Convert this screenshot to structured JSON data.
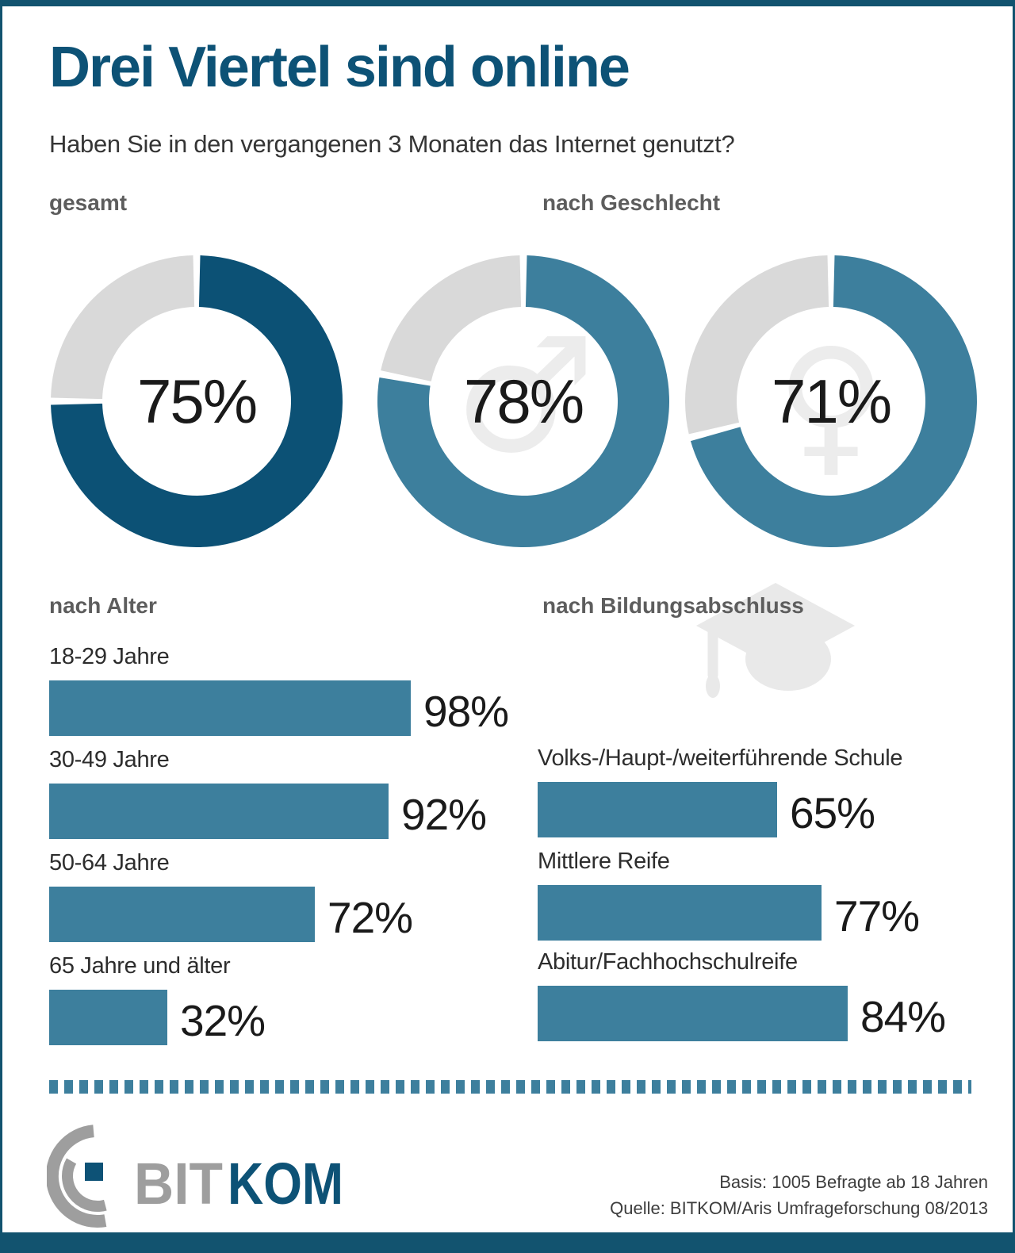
{
  "header": {
    "title": "Drei Viertel sind online",
    "question": "Haben Sie in den vergangenen 3 Monaten das Internet genutzt?"
  },
  "sections": {
    "total": "gesamt",
    "gender": "nach Geschlecht",
    "age": "nach Alter",
    "education": "nach Bildungsabschluss"
  },
  "colors": {
    "brand_dark_blue": "#0d5276",
    "teal": "#3d7f9d",
    "ring_rest_gray": "#d9d9d9",
    "watermark_gray": "#ececec",
    "section_label_gray": "#5d5d5d",
    "logo_gray": "#9e9e9e"
  },
  "chart_data": [
    {
      "type": "donut",
      "section": "gesamt",
      "items": [
        {
          "value": 75,
          "display": "75%",
          "color": "#0c5175",
          "rest_color": "#d9d9d9",
          "watermark_symbol": ""
        }
      ]
    },
    {
      "type": "donut",
      "section": "nach Geschlecht",
      "items": [
        {
          "value": 78,
          "display": "78%",
          "color": "#3d7f9d",
          "rest_color": "#d9d9d9",
          "watermark_symbol": "♂"
        },
        {
          "value": 71,
          "display": "71%",
          "color": "#3d7f9d",
          "rest_color": "#d9d9d9",
          "watermark_symbol": "♀"
        }
      ]
    },
    {
      "type": "bar",
      "section": "nach Alter",
      "color": "#3d7f9d",
      "axis_max": 100,
      "items": [
        {
          "label": "18-29 Jahre",
          "value": 98,
          "display": "98%"
        },
        {
          "label": "30-49 Jahre",
          "value": 92,
          "display": "92%"
        },
        {
          "label": "50-64 Jahre",
          "value": 72,
          "display": "72%"
        },
        {
          "label": "65 Jahre und älter",
          "value": 32,
          "display": "32%"
        }
      ]
    },
    {
      "type": "bar",
      "section": "nach Bildungsabschluss",
      "color": "#3d7f9d",
      "axis_max": 100,
      "items": [
        {
          "label": "Volks-/Haupt-/weiterführende Schule",
          "value": 65,
          "display": "65%"
        },
        {
          "label": "Mittlere Reife",
          "value": 77,
          "display": "77%"
        },
        {
          "label": "Abitur/Fachhochschulreife",
          "value": 84,
          "display": "84%"
        }
      ]
    }
  ],
  "logo": {
    "bit": "BIT",
    "kom": "KOM"
  },
  "footer": {
    "basis": "Basis: 1005 Befragte ab 18 Jahren",
    "quelle": "Quelle: BITKOM/Aris Umfrageforschung 08/2013"
  }
}
